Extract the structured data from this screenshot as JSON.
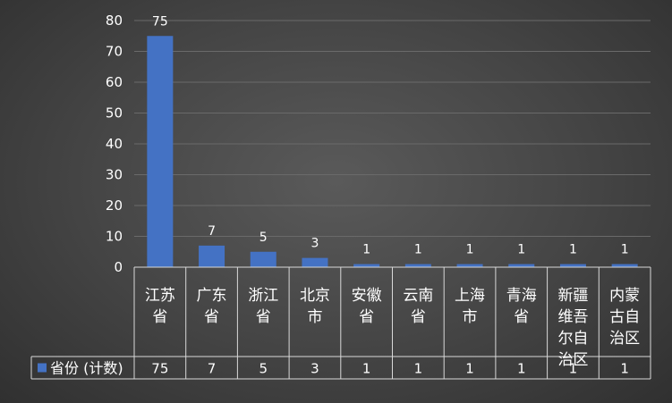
{
  "chart_data": {
    "type": "bar",
    "categories": [
      [
        "江苏",
        "省"
      ],
      [
        "广东",
        "省"
      ],
      [
        "浙江",
        "省"
      ],
      [
        "北京",
        "市"
      ],
      [
        "安徽",
        "省"
      ],
      [
        "云南",
        "省"
      ],
      [
        "上海",
        "市"
      ],
      [
        "青海",
        "省"
      ],
      [
        "新疆",
        "维吾",
        "尔自",
        "治区"
      ],
      [
        "内蒙",
        "古自",
        "治区"
      ]
    ],
    "series": [
      {
        "name": "省份 (计数)",
        "values": [
          75,
          7,
          5,
          3,
          1,
          1,
          1,
          1,
          1,
          1
        ]
      }
    ],
    "ylim": [
      0,
      80
    ],
    "yticks": [
      0,
      10,
      20,
      30,
      40,
      50,
      60,
      70,
      80
    ],
    "grid": true,
    "data_labels": true,
    "data_table": true,
    "colors": {
      "bar": "#4472c4",
      "grid": "#6a6a6a",
      "table_border": "#d9d9d9",
      "text": "#ffffff"
    }
  }
}
